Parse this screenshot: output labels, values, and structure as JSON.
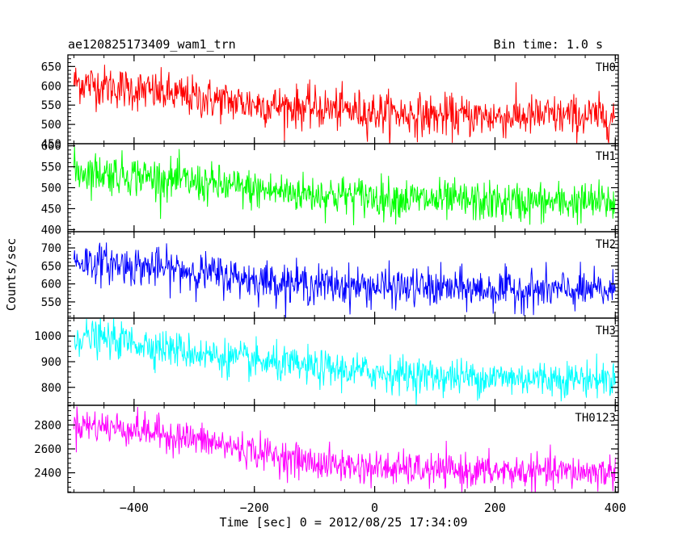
{
  "chart_data": {
    "type": "line",
    "title": "ae120825173409_wam1_trn",
    "subtitle": "Bin time: 1.0 s",
    "xlabel": "Time [sec] 0 = 2012/08/25 17:34:09",
    "ylabel": "Counts/sec",
    "xlim": [
      -510,
      405
    ],
    "xticks": [
      -400,
      -200,
      0,
      200,
      400
    ],
    "grid": false,
    "panels": [
      {
        "name": "TH0",
        "color": "#ff0000",
        "ylim": [
          450,
          680
        ],
        "yticks": [
          450,
          500,
          550,
          600,
          650
        ],
        "trend_x": [
          -500,
          -400,
          -300,
          -200,
          -100,
          0,
          100,
          200,
          300,
          400
        ],
        "trend_y": [
          610,
          590,
          570,
          552,
          542,
          532,
          522,
          520,
          522,
          520
        ],
        "noise_sigma": 27
      },
      {
        "name": "TH1",
        "color": "#00ff00",
        "ylim": [
          395,
          605
        ],
        "yticks": [
          400,
          450,
          500,
          550,
          600
        ],
        "trend_x": [
          -500,
          -400,
          -300,
          -200,
          -100,
          0,
          100,
          200,
          300,
          400
        ],
        "trend_y": [
          540,
          530,
          512,
          495,
          485,
          478,
          470,
          465,
          465,
          465
        ],
        "noise_sigma": 24
      },
      {
        "name": "TH2",
        "color": "#0000ff",
        "ylim": [
          505,
          745
        ],
        "yticks": [
          550,
          600,
          650,
          700
        ],
        "trend_x": [
          -500,
          -400,
          -300,
          -200,
          -100,
          0,
          100,
          200,
          300,
          400
        ],
        "trend_y": [
          665,
          650,
          635,
          612,
          598,
          592,
          588,
          584,
          582,
          580
        ],
        "noise_sigma": 27
      },
      {
        "name": "TH3",
        "color": "#00ffff",
        "ylim": [
          730,
          1070
        ],
        "yticks": [
          800,
          900,
          1000
        ],
        "trend_x": [
          -500,
          -400,
          -300,
          -200,
          -100,
          0,
          100,
          200,
          300,
          400
        ],
        "trend_y": [
          1000,
          975,
          935,
          900,
          875,
          858,
          843,
          838,
          835,
          832
        ],
        "noise_sigma": 35
      },
      {
        "name": "TH0123",
        "color": "#ff00ff",
        "ylim": [
          2235,
          2965
        ],
        "yticks": [
          2400,
          2600,
          2800
        ],
        "trend_x": [
          -500,
          -400,
          -300,
          -200,
          -100,
          0,
          100,
          200,
          300,
          400
        ],
        "trend_y": [
          2810,
          2765,
          2680,
          2580,
          2480,
          2440,
          2420,
          2410,
          2405,
          2405
        ],
        "noise_sigma": 70
      }
    ]
  }
}
